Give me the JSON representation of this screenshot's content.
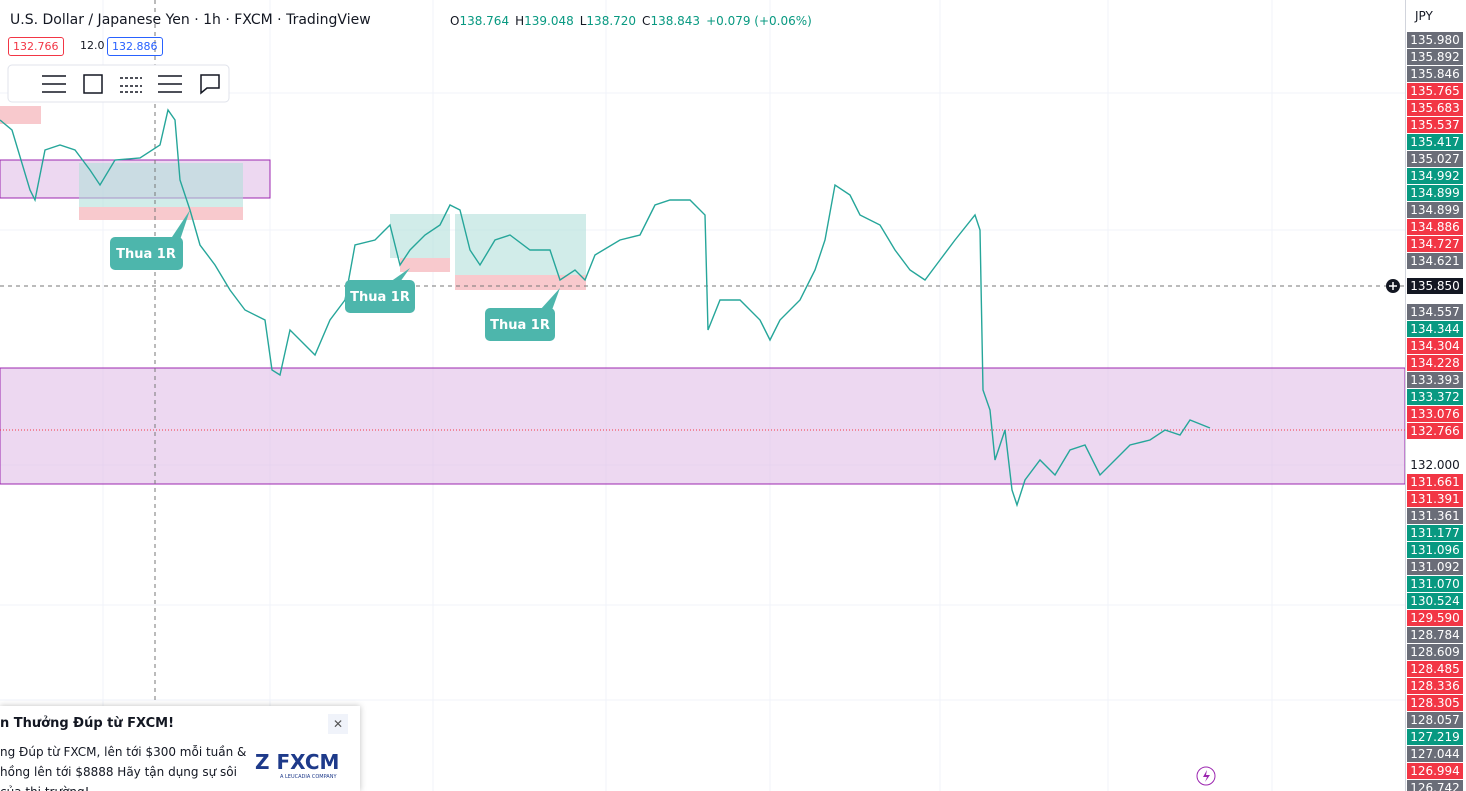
{
  "header": {
    "symbol": "U.S. Dollar / Japanese Yen · 1h · FXCM · TradingView",
    "ohlc": [
      {
        "label": "O",
        "value": "138.764"
      },
      {
        "label": "H",
        "value": "139.048"
      },
      {
        "label": "L",
        "value": "138.720"
      },
      {
        "label": "C",
        "value": "138.843"
      }
    ],
    "change": "+0.079 (+0.06%)"
  },
  "trade_bar": {
    "sell": "132.766",
    "spread": "12.0",
    "buy": "132.886"
  },
  "currency": "JPY",
  "current_price": "135.850",
  "price_labels": [
    {
      "text": "135.980",
      "kind": "gray"
    },
    {
      "text": "135.892",
      "kind": "gray"
    },
    {
      "text": "135.846",
      "kind": "gray"
    },
    {
      "text": "135.765",
      "kind": "red"
    },
    {
      "text": "135.683",
      "kind": "red"
    },
    {
      "text": "135.537",
      "kind": "red"
    },
    {
      "text": "135.417",
      "kind": "green"
    },
    {
      "text": "135.027",
      "kind": "gray"
    },
    {
      "text": "134.992",
      "kind": "green"
    },
    {
      "text": "134.899",
      "kind": "green"
    },
    {
      "text": "134.899",
      "kind": "gray"
    },
    {
      "text": "134.886",
      "kind": "red"
    },
    {
      "text": "134.727",
      "kind": "red"
    },
    {
      "text": "134.621",
      "kind": "gray"
    },
    {
      "text": "134.557",
      "kind": "gray"
    },
    {
      "text": "134.344",
      "kind": "green"
    },
    {
      "text": "134.304",
      "kind": "red"
    },
    {
      "text": "134.228",
      "kind": "red"
    },
    {
      "text": "133.393",
      "kind": "gray"
    },
    {
      "text": "133.372",
      "kind": "green"
    },
    {
      "text": "133.076",
      "kind": "red"
    },
    {
      "text": "132.766",
      "kind": "red"
    },
    {
      "text": "132.000",
      "kind": "plain"
    },
    {
      "text": "131.661",
      "kind": "red"
    },
    {
      "text": "131.391",
      "kind": "red"
    },
    {
      "text": "131.361",
      "kind": "gray"
    },
    {
      "text": "131.177",
      "kind": "green"
    },
    {
      "text": "131.096",
      "kind": "green"
    },
    {
      "text": "131.092",
      "kind": "gray"
    },
    {
      "text": "131.070",
      "kind": "green"
    },
    {
      "text": "130.524",
      "kind": "green"
    },
    {
      "text": "129.590",
      "kind": "red"
    },
    {
      "text": "128.784",
      "kind": "gray"
    },
    {
      "text": "128.609",
      "kind": "gray"
    },
    {
      "text": "128.485",
      "kind": "red"
    },
    {
      "text": "128.336",
      "kind": "red"
    },
    {
      "text": "128.305",
      "kind": "red"
    },
    {
      "text": "128.057",
      "kind": "gray"
    },
    {
      "text": "127.219",
      "kind": "green"
    },
    {
      "text": "127.044",
      "kind": "gray"
    },
    {
      "text": "126.994",
      "kind": "red"
    },
    {
      "text": "126.742",
      "kind": "gray"
    }
  ],
  "annotations": [
    "Thua 1R",
    "Thua 1R",
    "Thua 1R"
  ],
  "ad": {
    "title": "n Thưởng Đúp từ FXCM!",
    "body": [
      "ng Đúp từ FXCM, lên tới $300 mỗi tuần &",
      "hồng lên tới $8888 Hãy tận dụng sự sôi",
      "của thị trường!"
    ],
    "logo": "FXCM",
    "logo_sub": "A LEUCADIA COMPANY"
  }
}
